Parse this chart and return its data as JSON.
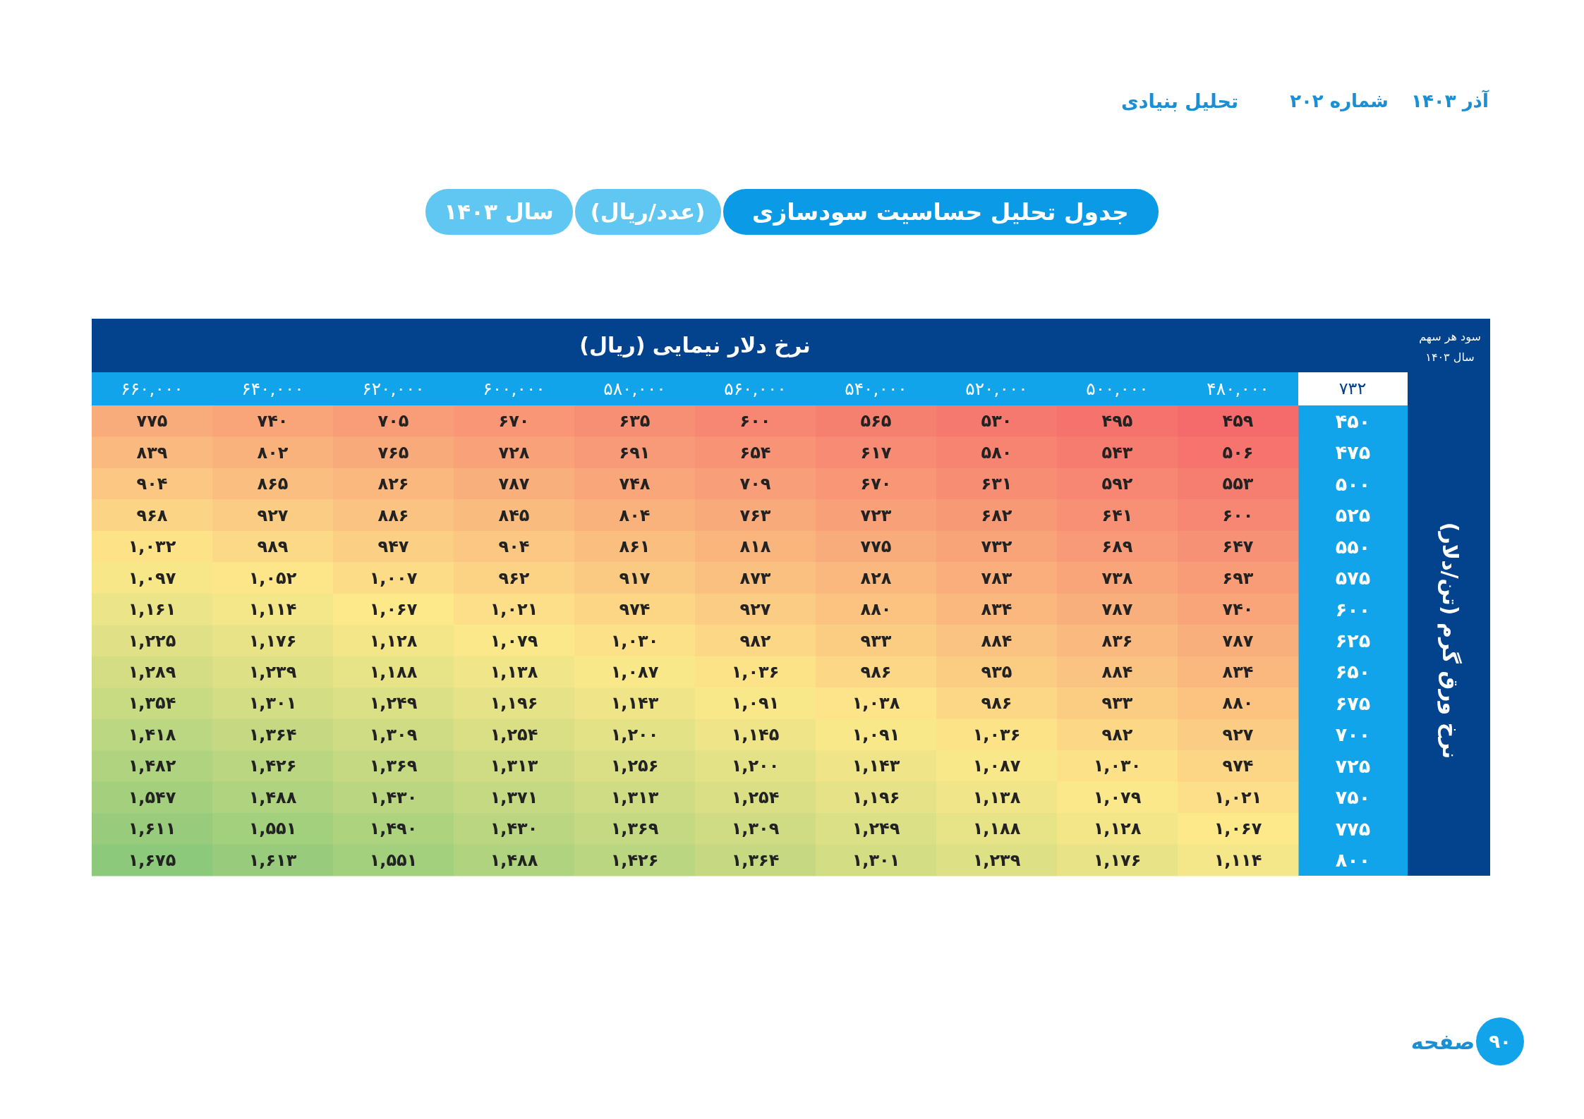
{
  "chart_data": {
    "type": "heatmap",
    "title": "جدول تحلیل حساسیت سودسازی",
    "subtitle": "(عدد/ریال)",
    "xlabel": "نرخ دلار نیمایی (ریال)",
    "ylabel": "نرخ ورق گرم (تن/دلار)",
    "categories": [
      "۶۶۰,۰۰۰",
      "۶۴۰,۰۰۰",
      "۶۲۰,۰۰۰",
      "۶۰۰,۰۰۰",
      "۵۸۰,۰۰۰",
      "۵۶۰,۰۰۰",
      "۵۴۰,۰۰۰",
      "۵۲۰,۰۰۰",
      "۵۰۰,۰۰۰",
      "۴۸۰,۰۰۰"
    ],
    "y_categories": [
      "۴۵۰",
      "۴۷۵",
      "۵۰۰",
      "۵۲۵",
      "۵۵۰",
      "۵۷۵",
      "۶۰۰",
      "۶۲۵",
      "۶۵۰",
      "۶۷۵",
      "۷۰۰",
      "۷۲۵",
      "۷۵۰",
      "۷۷۵",
      "۸۰۰"
    ],
    "cells": [
      [
        775,
        740,
        705,
        670,
        635,
        600,
        565,
        530,
        495,
        459
      ],
      [
        839,
        802,
        765,
        728,
        691,
        654,
        617,
        580,
        543,
        506
      ],
      [
        904,
        865,
        826,
        787,
        748,
        709,
        670,
        631,
        592,
        553
      ],
      [
        968,
        927,
        886,
        845,
        804,
        763,
        723,
        682,
        641,
        600
      ],
      [
        1032,
        989,
        947,
        904,
        861,
        818,
        775,
        732,
        689,
        647
      ],
      [
        1097,
        1052,
        1007,
        962,
        917,
        873,
        828,
        783,
        738,
        693
      ],
      [
        1161,
        1114,
        1067,
        1021,
        974,
        927,
        880,
        834,
        787,
        740
      ],
      [
        1225,
        1176,
        1128,
        1079,
        1030,
        982,
        933,
        884,
        836,
        787
      ],
      [
        1289,
        1239,
        1188,
        1138,
        1087,
        1036,
        986,
        935,
        884,
        834
      ],
      [
        1354,
        1301,
        1249,
        1196,
        1143,
        1091,
        1038,
        986,
        933,
        880
      ],
      [
        1418,
        1364,
        1309,
        1254,
        1200,
        1145,
        1091,
        1036,
        982,
        927
      ],
      [
        1482,
        1426,
        1369,
        1313,
        1256,
        1200,
        1143,
        1087,
        1030,
        974
      ],
      [
        1547,
        1488,
        1430,
        1371,
        1313,
        1254,
        1196,
        1138,
        1079,
        1021
      ],
      [
        1611,
        1551,
        1490,
        1430,
        1369,
        1309,
        1249,
        1188,
        1128,
        1067
      ],
      [
        1675,
        1613,
        1551,
        1488,
        1426,
        1364,
        1301,
        1239,
        1176,
        1114
      ]
    ],
    "cell_labels": [
      [
        "۷۷۵",
        "۷۴۰",
        "۷۰۵",
        "۶۷۰",
        "۶۳۵",
        "۶۰۰",
        "۵۶۵",
        "۵۳۰",
        "۴۹۵",
        "۴۵۹"
      ],
      [
        "۸۳۹",
        "۸۰۲",
        "۷۶۵",
        "۷۲۸",
        "۶۹۱",
        "۶۵۴",
        "۶۱۷",
        "۵۸۰",
        "۵۴۳",
        "۵۰۶"
      ],
      [
        "۹۰۴",
        "۸۶۵",
        "۸۲۶",
        "۷۸۷",
        "۷۴۸",
        "۷۰۹",
        "۶۷۰",
        "۶۳۱",
        "۵۹۲",
        "۵۵۳"
      ],
      [
        "۹۶۸",
        "۹۲۷",
        "۸۸۶",
        "۸۴۵",
        "۸۰۴",
        "۷۶۳",
        "۷۲۳",
        "۶۸۲",
        "۶۴۱",
        "۶۰۰"
      ],
      [
        "۱,۰۳۲",
        "۹۸۹",
        "۹۴۷",
        "۹۰۴",
        "۸۶۱",
        "۸۱۸",
        "۷۷۵",
        "۷۳۲",
        "۶۸۹",
        "۶۴۷"
      ],
      [
        "۱,۰۹۷",
        "۱,۰۵۲",
        "۱,۰۰۷",
        "۹۶۲",
        "۹۱۷",
        "۸۷۳",
        "۸۲۸",
        "۷۸۳",
        "۷۳۸",
        "۶۹۳"
      ],
      [
        "۱,۱۶۱",
        "۱,۱۱۴",
        "۱,۰۶۷",
        "۱,۰۲۱",
        "۹۷۴",
        "۹۲۷",
        "۸۸۰",
        "۸۳۴",
        "۷۸۷",
        "۷۴۰"
      ],
      [
        "۱,۲۲۵",
        "۱,۱۷۶",
        "۱,۱۲۸",
        "۱,۰۷۹",
        "۱,۰۳۰",
        "۹۸۲",
        "۹۳۳",
        "۸۸۴",
        "۸۳۶",
        "۷۸۷"
      ],
      [
        "۱,۲۸۹",
        "۱,۲۳۹",
        "۱,۱۸۸",
        "۱,۱۳۸",
        "۱,۰۸۷",
        "۱,۰۳۶",
        "۹۸۶",
        "۹۳۵",
        "۸۸۴",
        "۸۳۴"
      ],
      [
        "۱,۳۵۴",
        "۱,۳۰۱",
        "۱,۲۴۹",
        "۱,۱۹۶",
        "۱,۱۴۳",
        "۱,۰۹۱",
        "۱,۰۳۸",
        "۹۸۶",
        "۹۳۳",
        "۸۸۰"
      ],
      [
        "۱,۴۱۸",
        "۱,۳۶۴",
        "۱,۳۰۹",
        "۱,۲۵۴",
        "۱,۲۰۰",
        "۱,۱۴۵",
        "۱,۰۹۱",
        "۱,۰۳۶",
        "۹۸۲",
        "۹۲۷"
      ],
      [
        "۱,۴۸۲",
        "۱,۴۲۶",
        "۱,۳۶۹",
        "۱,۳۱۳",
        "۱,۲۵۶",
        "۱,۲۰۰",
        "۱,۱۴۳",
        "۱,۰۸۷",
        "۱,۰۳۰",
        "۹۷۴"
      ],
      [
        "۱,۵۴۷",
        "۱,۴۸۸",
        "۱,۴۳۰",
        "۱,۳۷۱",
        "۱,۳۱۳",
        "۱,۲۵۴",
        "۱,۱۹۶",
        "۱,۱۳۸",
        "۱,۰۷۹",
        "۱,۰۲۱"
      ],
      [
        "۱,۶۱۱",
        "۱,۵۵۱",
        "۱,۴۹۰",
        "۱,۴۳۰",
        "۱,۳۶۹",
        "۱,۳۰۹",
        "۱,۲۴۹",
        "۱,۱۸۸",
        "۱,۱۲۸",
        "۱,۰۶۷"
      ],
      [
        "۱,۶۷۵",
        "۱,۶۱۳",
        "۱,۵۵۱",
        "۱,۴۸۸",
        "۱,۴۲۶",
        "۱,۳۶۴",
        "۱,۳۰۱",
        "۱,۲۳۹",
        "۱,۱۷۶",
        "۱,۱۱۴"
      ]
    ],
    "annotations": [
      "سال ۱۴۰۳",
      "تحلیل بنیادی",
      "آذر ۱۴۰۳",
      "شماره ۲۰۲",
      "سود هر سهم",
      "سال ۱۴۰۳",
      "۷۳۲",
      "صفحه",
      "۹۰"
    ]
  }
}
